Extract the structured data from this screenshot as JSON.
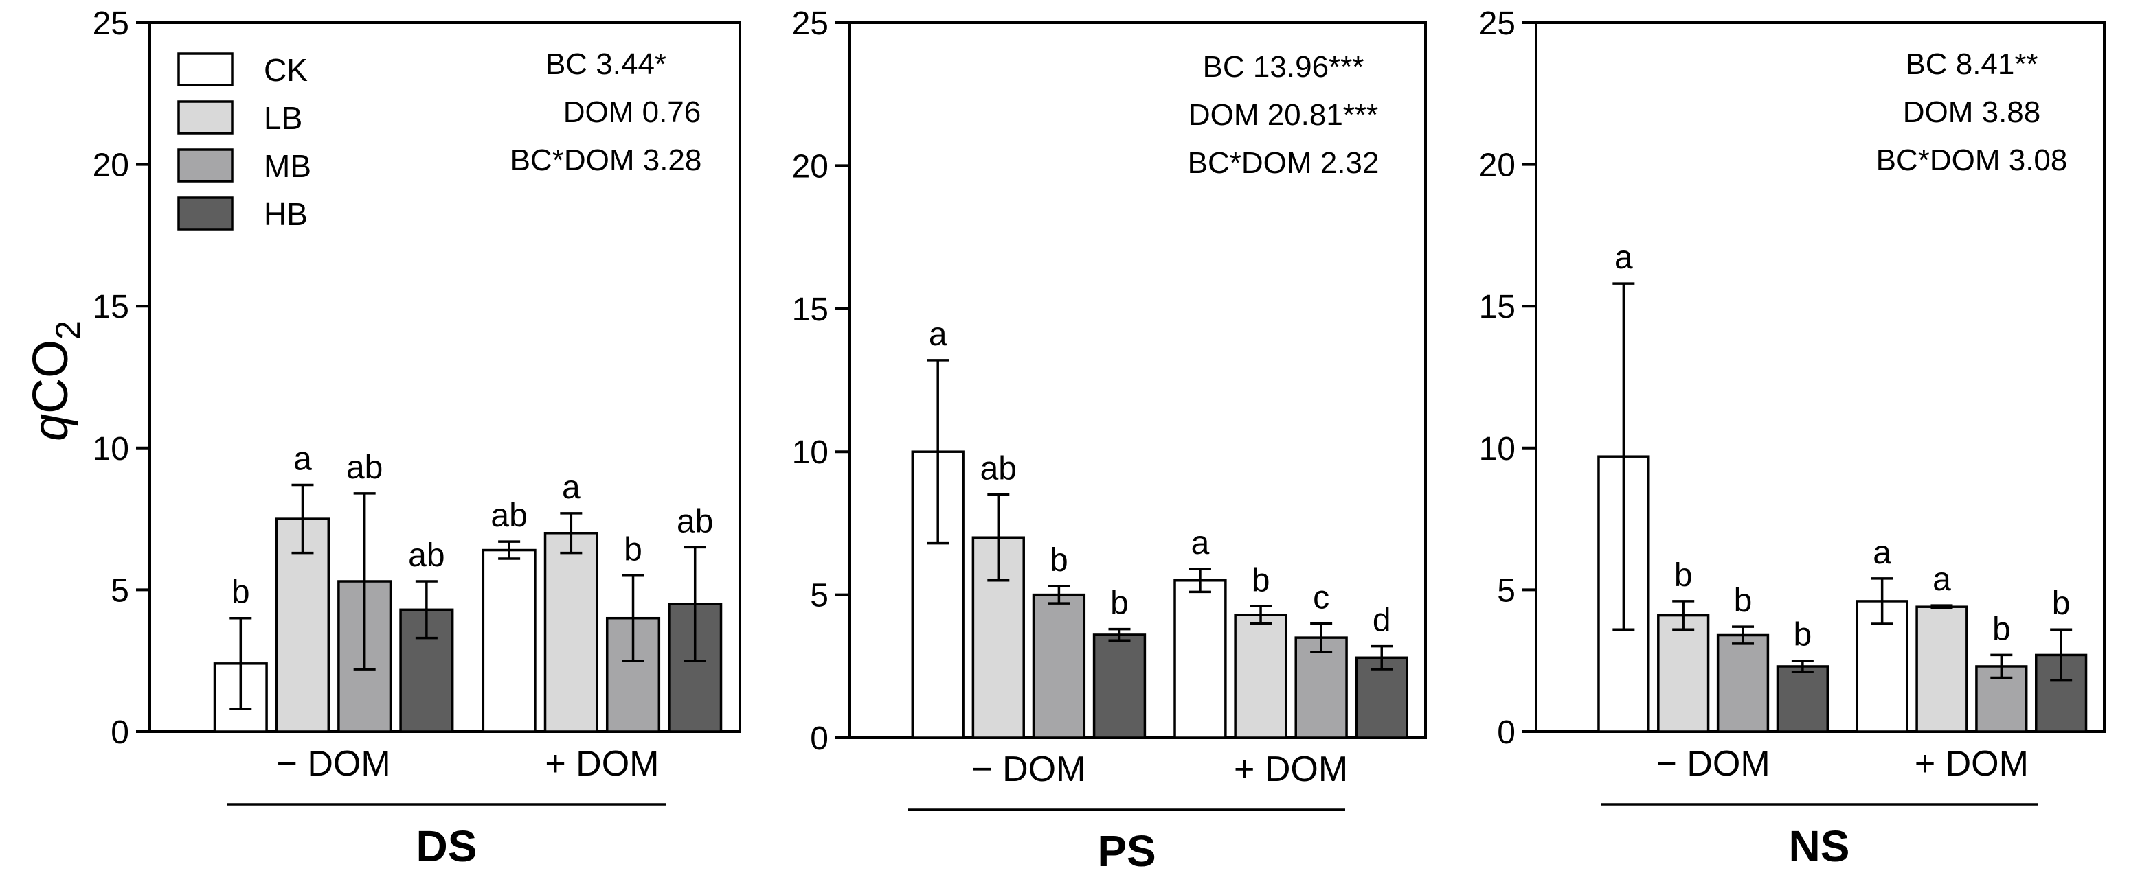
{
  "chart_data": {
    "type": "bar",
    "ylabel": "qCO2",
    "ylabel_italic": "q",
    "ylabel_main": "CO",
    "ylabel_sub": "2",
    "ylim": [
      0,
      25
    ],
    "yticks": [
      "0",
      "5",
      "10",
      "15",
      "20",
      "25"
    ],
    "ytick_values": [
      0,
      5,
      10,
      15,
      20,
      25
    ],
    "series_names": [
      "CK",
      "LB",
      "MB",
      "HB"
    ],
    "colors": [
      "#ffffff",
      "#d9d9d9",
      "#a6a6a8",
      "#5e5e5e"
    ],
    "legend_location": "top-left of first panel",
    "group_labels": [
      "− DOM",
      "+ DOM"
    ],
    "panels": [
      {
        "site": "DS",
        "stats": [
          "BC 3.44*",
          "DOM 0.76",
          "BC*DOM 3.28"
        ],
        "groups": [
          {
            "label": "− DOM",
            "values": [
              2.4,
              7.5,
              5.3,
              4.3
            ],
            "errors": [
              1.6,
              1.2,
              3.1,
              1.0
            ],
            "letters": [
              "b",
              "a",
              "ab",
              "ab"
            ]
          },
          {
            "label": "+ DOM",
            "values": [
              6.4,
              7.0,
              4.0,
              4.5
            ],
            "errors": [
              0.3,
              0.7,
              1.5,
              2.0
            ],
            "letters": [
              "ab",
              "a",
              "b",
              "ab"
            ]
          }
        ]
      },
      {
        "site": "PS",
        "stats": [
          "BC 13.96***",
          "DOM 20.81***",
          "BC*DOM 2.32"
        ],
        "groups": [
          {
            "label": "− DOM",
            "values": [
              10.0,
              7.0,
              5.0,
              3.6
            ],
            "errors": [
              3.2,
              1.5,
              0.3,
              0.2
            ],
            "letters": [
              "a",
              "ab",
              "b",
              "b"
            ]
          },
          {
            "label": "+ DOM",
            "values": [
              5.5,
              4.3,
              3.5,
              2.8
            ],
            "errors": [
              0.4,
              0.3,
              0.5,
              0.4
            ],
            "letters": [
              "a",
              "b",
              "c",
              "d"
            ]
          }
        ]
      },
      {
        "site": "NS",
        "stats": [
          "BC 8.41**",
          "DOM 3.88",
          "BC*DOM 3.08"
        ],
        "groups": [
          {
            "label": "− DOM",
            "values": [
              9.7,
              4.1,
              3.4,
              2.3
            ],
            "errors": [
              6.1,
              0.5,
              0.3,
              0.2
            ],
            "letters": [
              "a",
              "b",
              "b",
              "b"
            ]
          },
          {
            "label": "+ DOM",
            "values": [
              4.6,
              4.4,
              2.3,
              2.7
            ],
            "errors": [
              0.8,
              0.05,
              0.4,
              0.9
            ],
            "letters": [
              "a",
              "a",
              "b",
              "b"
            ]
          }
        ]
      }
    ]
  }
}
